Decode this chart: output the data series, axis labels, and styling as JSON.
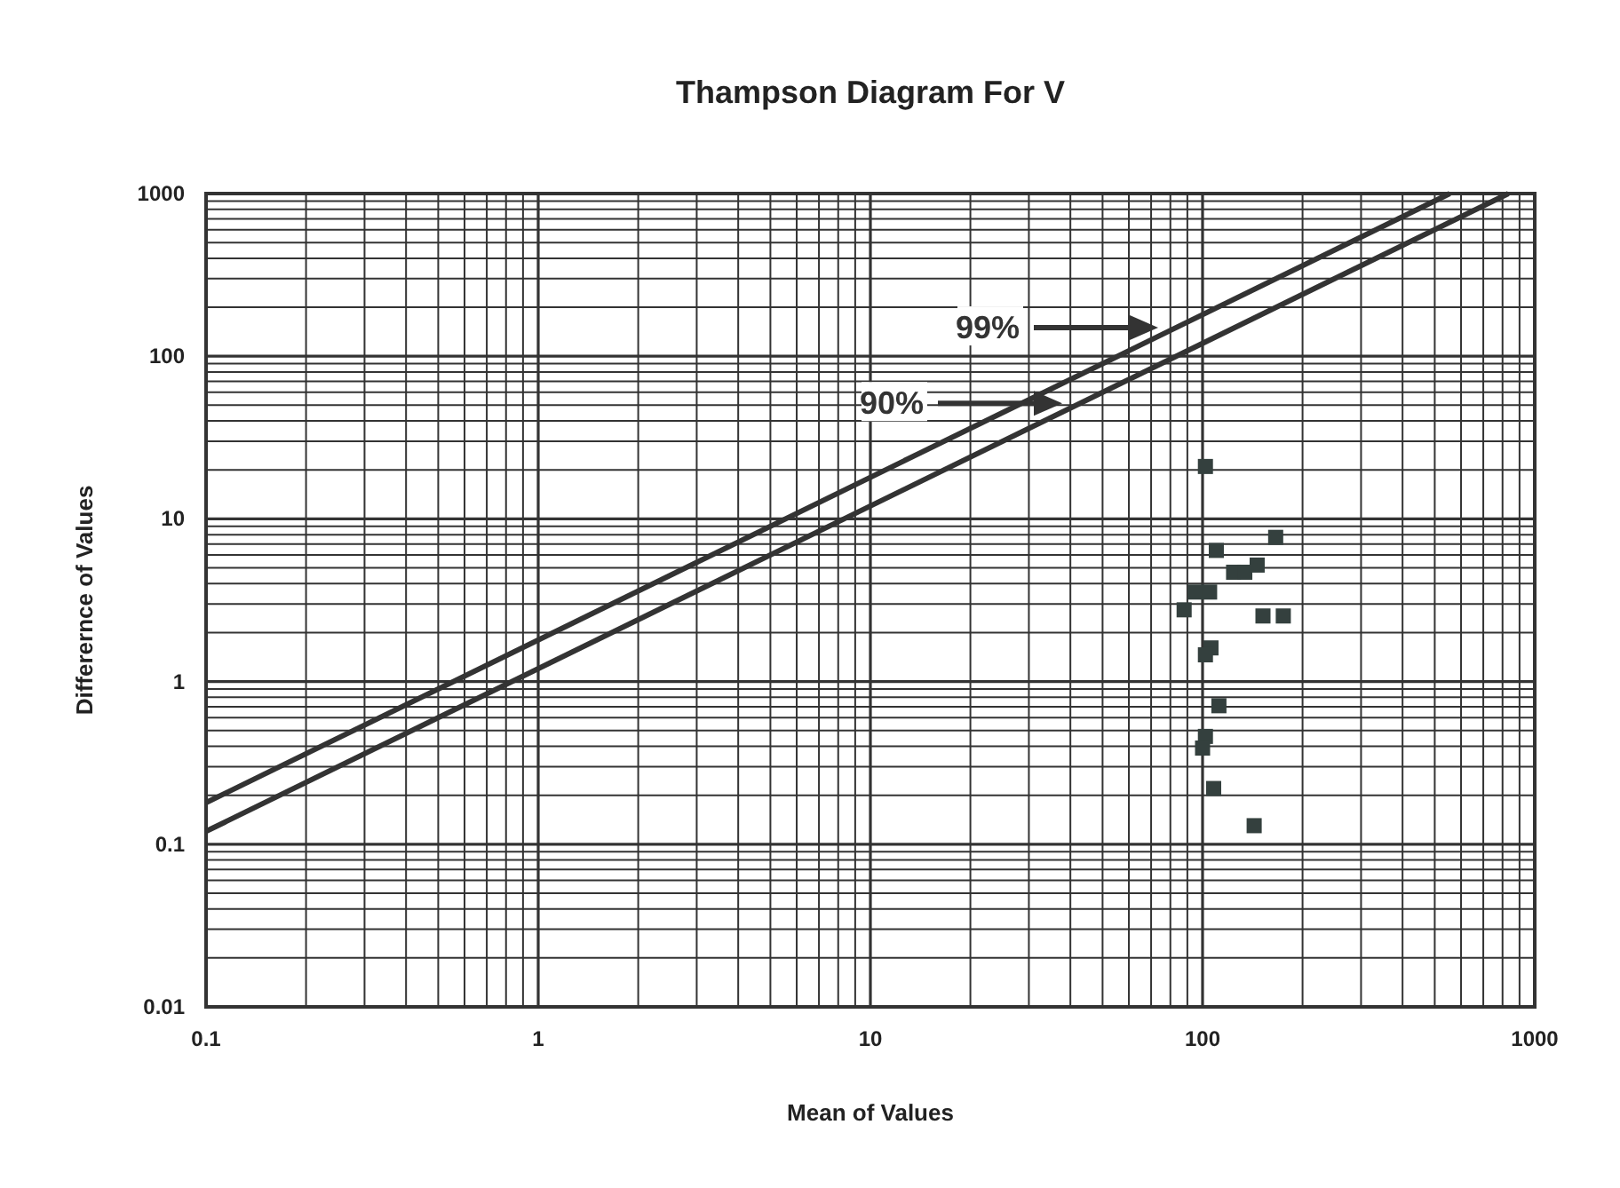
{
  "chart_data": {
    "type": "scatter",
    "title": "Thampson Diagram For V",
    "xlabel": "Mean of Values",
    "ylabel": "Differernce of Values",
    "log": "xy",
    "grid": true,
    "marker": "square",
    "xlim": [
      0.1,
      1000
    ],
    "ylim": [
      0.01,
      1000
    ],
    "xticks": [
      0.1,
      {
        "value": 0.2,
        "label": null
      },
      {
        "value": 0.3,
        "label": null
      },
      {
        "value": 0.4,
        "label": null
      },
      {
        "value": 0.5,
        "label": null
      },
      {
        "value": 0.6,
        "label": null
      },
      {
        "value": 0.7,
        "label": null
      },
      {
        "value": 0.8,
        "label": null
      },
      {
        "value": 0.9,
        "label": null
      },
      1,
      {
        "value": 2,
        "label": null
      },
      {
        "value": 3,
        "label": null
      },
      {
        "value": 4,
        "label": null
      },
      {
        "value": 5,
        "label": null
      },
      {
        "value": 6,
        "label": null
      },
      {
        "value": 7,
        "label": null
      },
      {
        "value": 8,
        "label": null
      },
      {
        "value": 9,
        "label": null
      },
      10,
      {
        "value": 20,
        "label": null
      },
      {
        "value": 30,
        "label": null
      },
      {
        "value": 40,
        "label": null
      },
      {
        "value": 50,
        "label": null
      },
      {
        "value": 60,
        "label": null
      },
      {
        "value": 70,
        "label": null
      },
      {
        "value": 80,
        "label": null
      },
      {
        "value": 90,
        "label": null
      },
      100,
      {
        "value": 200,
        "label": null
      },
      {
        "value": 300,
        "label": null
      },
      {
        "value": 400,
        "label": null
      },
      {
        "value": 500,
        "label": null
      },
      {
        "value": 600,
        "label": null
      },
      {
        "value": 700,
        "label": null
      },
      {
        "value": 800,
        "label": null
      },
      {
        "value": 900,
        "label": null
      },
      1000
    ],
    "yticks": [
      0.01,
      {
        "value": 0.02,
        "label": null
      },
      {
        "value": 0.03,
        "label": null
      },
      {
        "value": 0.04,
        "label": null
      },
      {
        "value": 0.05,
        "label": null
      },
      {
        "value": 0.06,
        "label": null
      },
      {
        "value": 0.07,
        "label": null
      },
      {
        "value": 0.08,
        "label": null
      },
      {
        "value": 0.09,
        "label": null
      },
      0.1,
      {
        "value": 0.2,
        "label": null
      },
      {
        "value": 0.3,
        "label": null
      },
      {
        "value": 0.4,
        "label": null
      },
      {
        "value": 0.5,
        "label": null
      },
      {
        "value": 0.6,
        "label": null
      },
      {
        "value": 0.7,
        "label": null
      },
      {
        "value": 0.8,
        "label": null
      },
      {
        "value": 0.9,
        "label": null
      },
      1,
      {
        "value": 2,
        "label": null
      },
      {
        "value": 3,
        "label": null
      },
      {
        "value": 4,
        "label": null
      },
      {
        "value": 5,
        "label": null
      },
      {
        "value": 6,
        "label": null
      },
      {
        "value": 7,
        "label": null
      },
      {
        "value": 8,
        "label": null
      },
      {
        "value": 9,
        "label": null
      },
      10,
      {
        "value": 20,
        "label": null
      },
      {
        "value": 30,
        "label": null
      },
      {
        "value": 40,
        "label": null
      },
      {
        "value": 50,
        "label": null
      },
      {
        "value": 60,
        "label": null
      },
      {
        "value": 70,
        "label": null
      },
      {
        "value": 80,
        "label": null
      },
      {
        "value": 90,
        "label": null
      },
      100,
      {
        "value": 200,
        "label": null
      },
      {
        "value": 300,
        "label": null
      },
      {
        "value": 400,
        "label": null
      },
      {
        "value": 500,
        "label": null
      },
      {
        "value": 600,
        "label": null
      },
      {
        "value": 700,
        "label": null
      },
      {
        "value": 800,
        "label": null
      },
      {
        "value": 900,
        "label": null
      },
      1000
    ],
    "series": [
      {
        "type": "line",
        "marker": "none",
        "color": "#333333",
        "x": [
          0.1,
          555
        ],
        "values": [
          0.18,
          1000
        ]
      },
      {
        "type": "line",
        "marker": "none",
        "color": "#333333",
        "x": [
          0.1,
          833
        ],
        "values": [
          0.12,
          1000
        ]
      },
      {
        "type": "scatter",
        "color": "#34403e",
        "x": [
          102,
          110,
          166,
          124,
          134,
          146,
          95,
          105,
          88,
          152,
          175,
          106,
          102,
          112,
          102,
          100,
          108,
          143
        ],
        "values": [
          21,
          6.4,
          7.7,
          4.7,
          4.7,
          5.2,
          3.55,
          3.55,
          2.76,
          2.53,
          2.53,
          1.61,
          1.46,
          0.71,
          0.46,
          0.39,
          0.22,
          0.13
        ]
      }
    ],
    "annotations": [
      "99%",
      "90%"
    ]
  }
}
